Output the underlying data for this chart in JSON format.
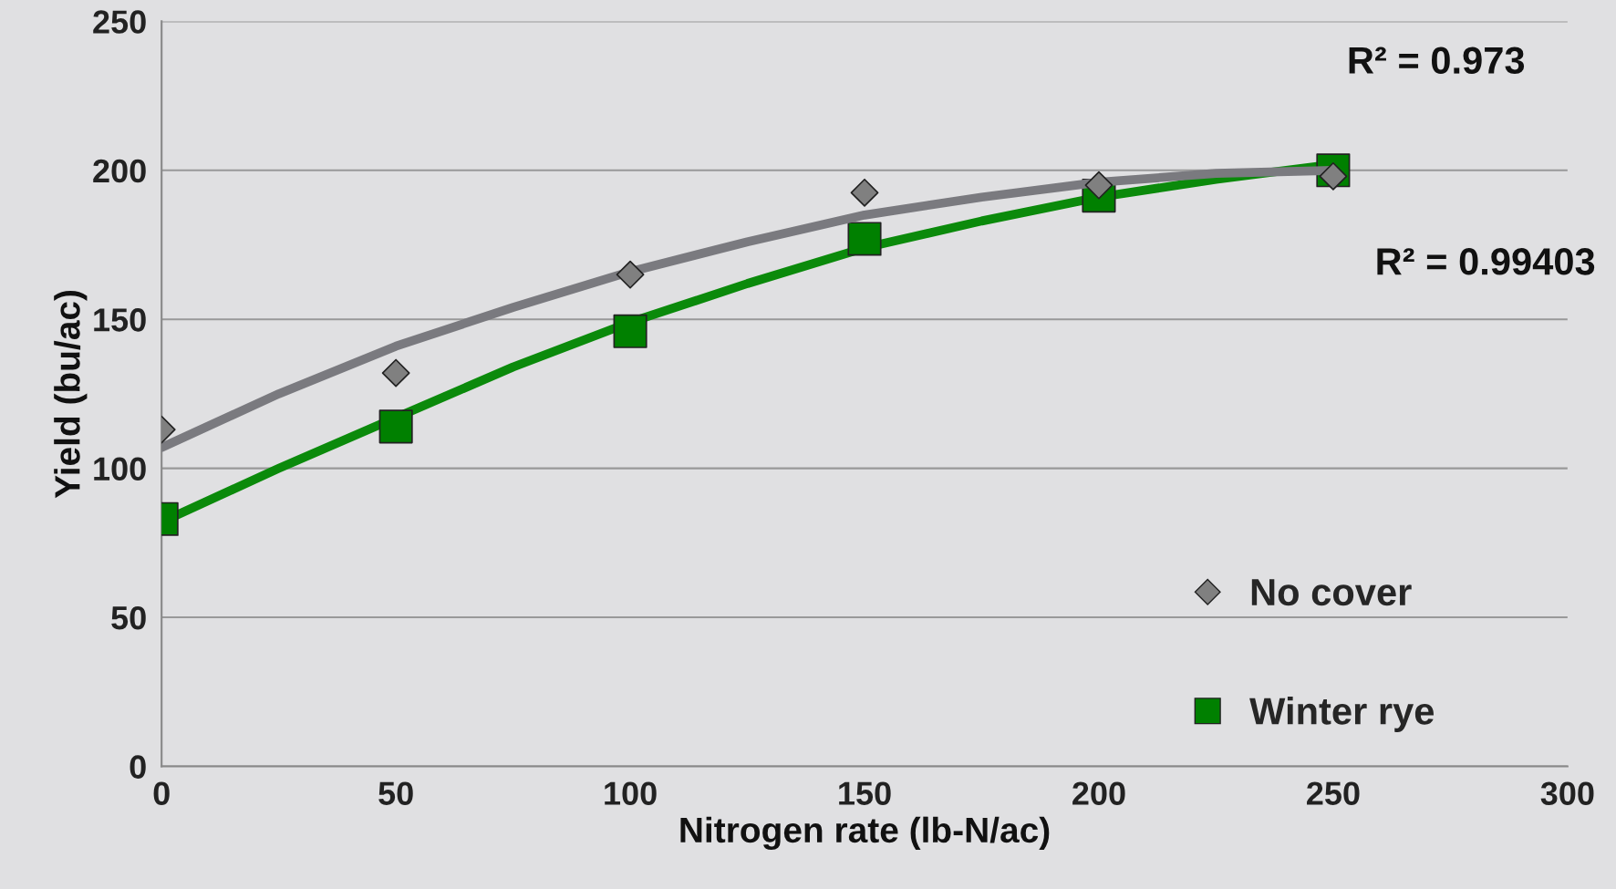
{
  "chart_data": {
    "type": "scatter",
    "xlabel": "Nitrogen rate (lb-N/ac)",
    "ylabel": "Yield (bu/ac)",
    "x": [
      0,
      50,
      100,
      150,
      200,
      250
    ],
    "series": [
      {
        "name": "No cover",
        "color": "#808080",
        "marker": "diamond",
        "values": [
          113,
          132,
          165,
          192.5,
          195,
          198
        ]
      },
      {
        "name": "Winter rye",
        "color": "#008000",
        "marker": "square",
        "values": [
          83,
          114,
          146,
          177,
          191.5,
          200
        ]
      },
      {
        "type": "line",
        "color": "#7a7a7f",
        "x": [
          0,
          25,
          50,
          75,
          100,
          125,
          150,
          175,
          200,
          225,
          250
        ],
        "values": [
          107,
          125,
          141,
          154,
          166,
          176,
          185,
          191,
          196,
          199,
          200
        ]
      },
      {
        "type": "line",
        "color": "#0b8a0b",
        "x": [
          0,
          25,
          50,
          75,
          100,
          125,
          150,
          175,
          200,
          225,
          250
        ],
        "values": [
          82,
          100,
          117,
          134,
          149,
          162,
          174,
          183,
          191,
          197,
          202
        ]
      }
    ],
    "annotations": [
      "R² = 0.973",
      "R² = 0.99403"
    ],
    "xlim": [
      0,
      300
    ],
    "xticks": [
      0,
      50,
      100,
      150,
      200,
      250,
      300
    ],
    "ylim": [
      0,
      250
    ],
    "yticks": [
      0,
      50,
      100,
      150,
      200,
      250
    ],
    "grid": "y",
    "legend": "bottom right"
  }
}
